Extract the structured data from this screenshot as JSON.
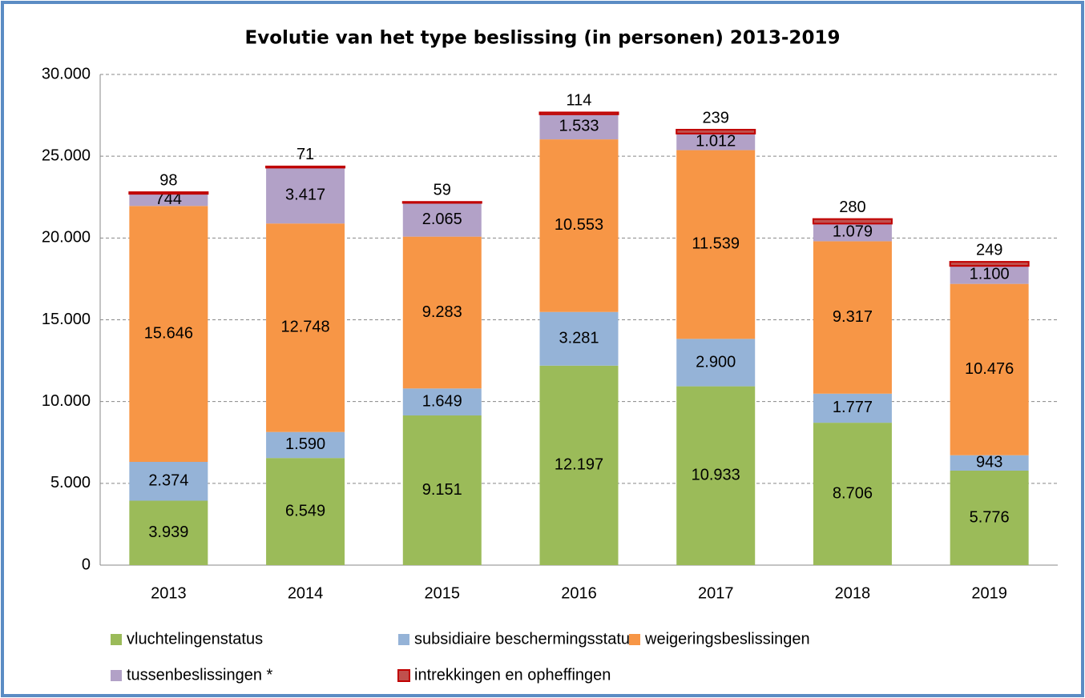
{
  "chart_data": {
    "type": "stacked_bar",
    "title": "Evolutie van  het type beslissing (in personen) 2013-2019",
    "categories": [
      "2013",
      "2014",
      "2015",
      "2016",
      "2017",
      "2018",
      "2019"
    ],
    "series": [
      {
        "name": "vluchtelingenstatus",
        "color": "#9bbb59",
        "values": [
          3939,
          6549,
          9151,
          12197,
          10933,
          8706,
          5776
        ],
        "value_labels": [
          "3.939",
          "6.549",
          "9.151",
          "12.197",
          "10.933",
          "8.706",
          "5.776"
        ]
      },
      {
        "name": "subsidiaire beschermingsstatus",
        "color": "#95b3d7",
        "values": [
          2374,
          1590,
          1649,
          3281,
          2900,
          1777,
          943
        ],
        "value_labels": [
          "2.374",
          "1.590",
          "1.649",
          "3.281",
          "2.900",
          "1.777",
          "943"
        ]
      },
      {
        "name": "weigeringsbeslissingen",
        "color": "#f79646",
        "values": [
          15646,
          12748,
          9283,
          10553,
          11539,
          9317,
          10476
        ],
        "value_labels": [
          "15.646",
          "12.748",
          "9.283",
          "10.553",
          "11.539",
          "9.317",
          "10.476"
        ]
      },
      {
        "name": "tussenbeslissingen *",
        "color": "#b2a1c7",
        "values": [
          744,
          3417,
          2065,
          1533,
          1012,
          1079,
          1100
        ],
        "value_labels": [
          "744",
          "3.417",
          "2.065",
          "1.533",
          "1.012",
          "1.079",
          "1.100"
        ]
      },
      {
        "name": "intrekkingen en opheffingen",
        "color": "#c0504d",
        "values": [
          98,
          71,
          59,
          114,
          239,
          280,
          249
        ]
      }
    ],
    "ylim": [
      0,
      30000
    ],
    "yticks": [
      0,
      {
        "value": 5000,
        "label": "5.000"
      },
      {
        "value": 10000,
        "label": "10.000"
      },
      {
        "value": 15000,
        "label": "15.000"
      },
      {
        "value": 20000,
        "label": "20.000"
      },
      {
        "value": 25000,
        "label": "25.000"
      },
      {
        "value": 30000,
        "label": "30.000"
      }
    ],
    "grid": true
  }
}
